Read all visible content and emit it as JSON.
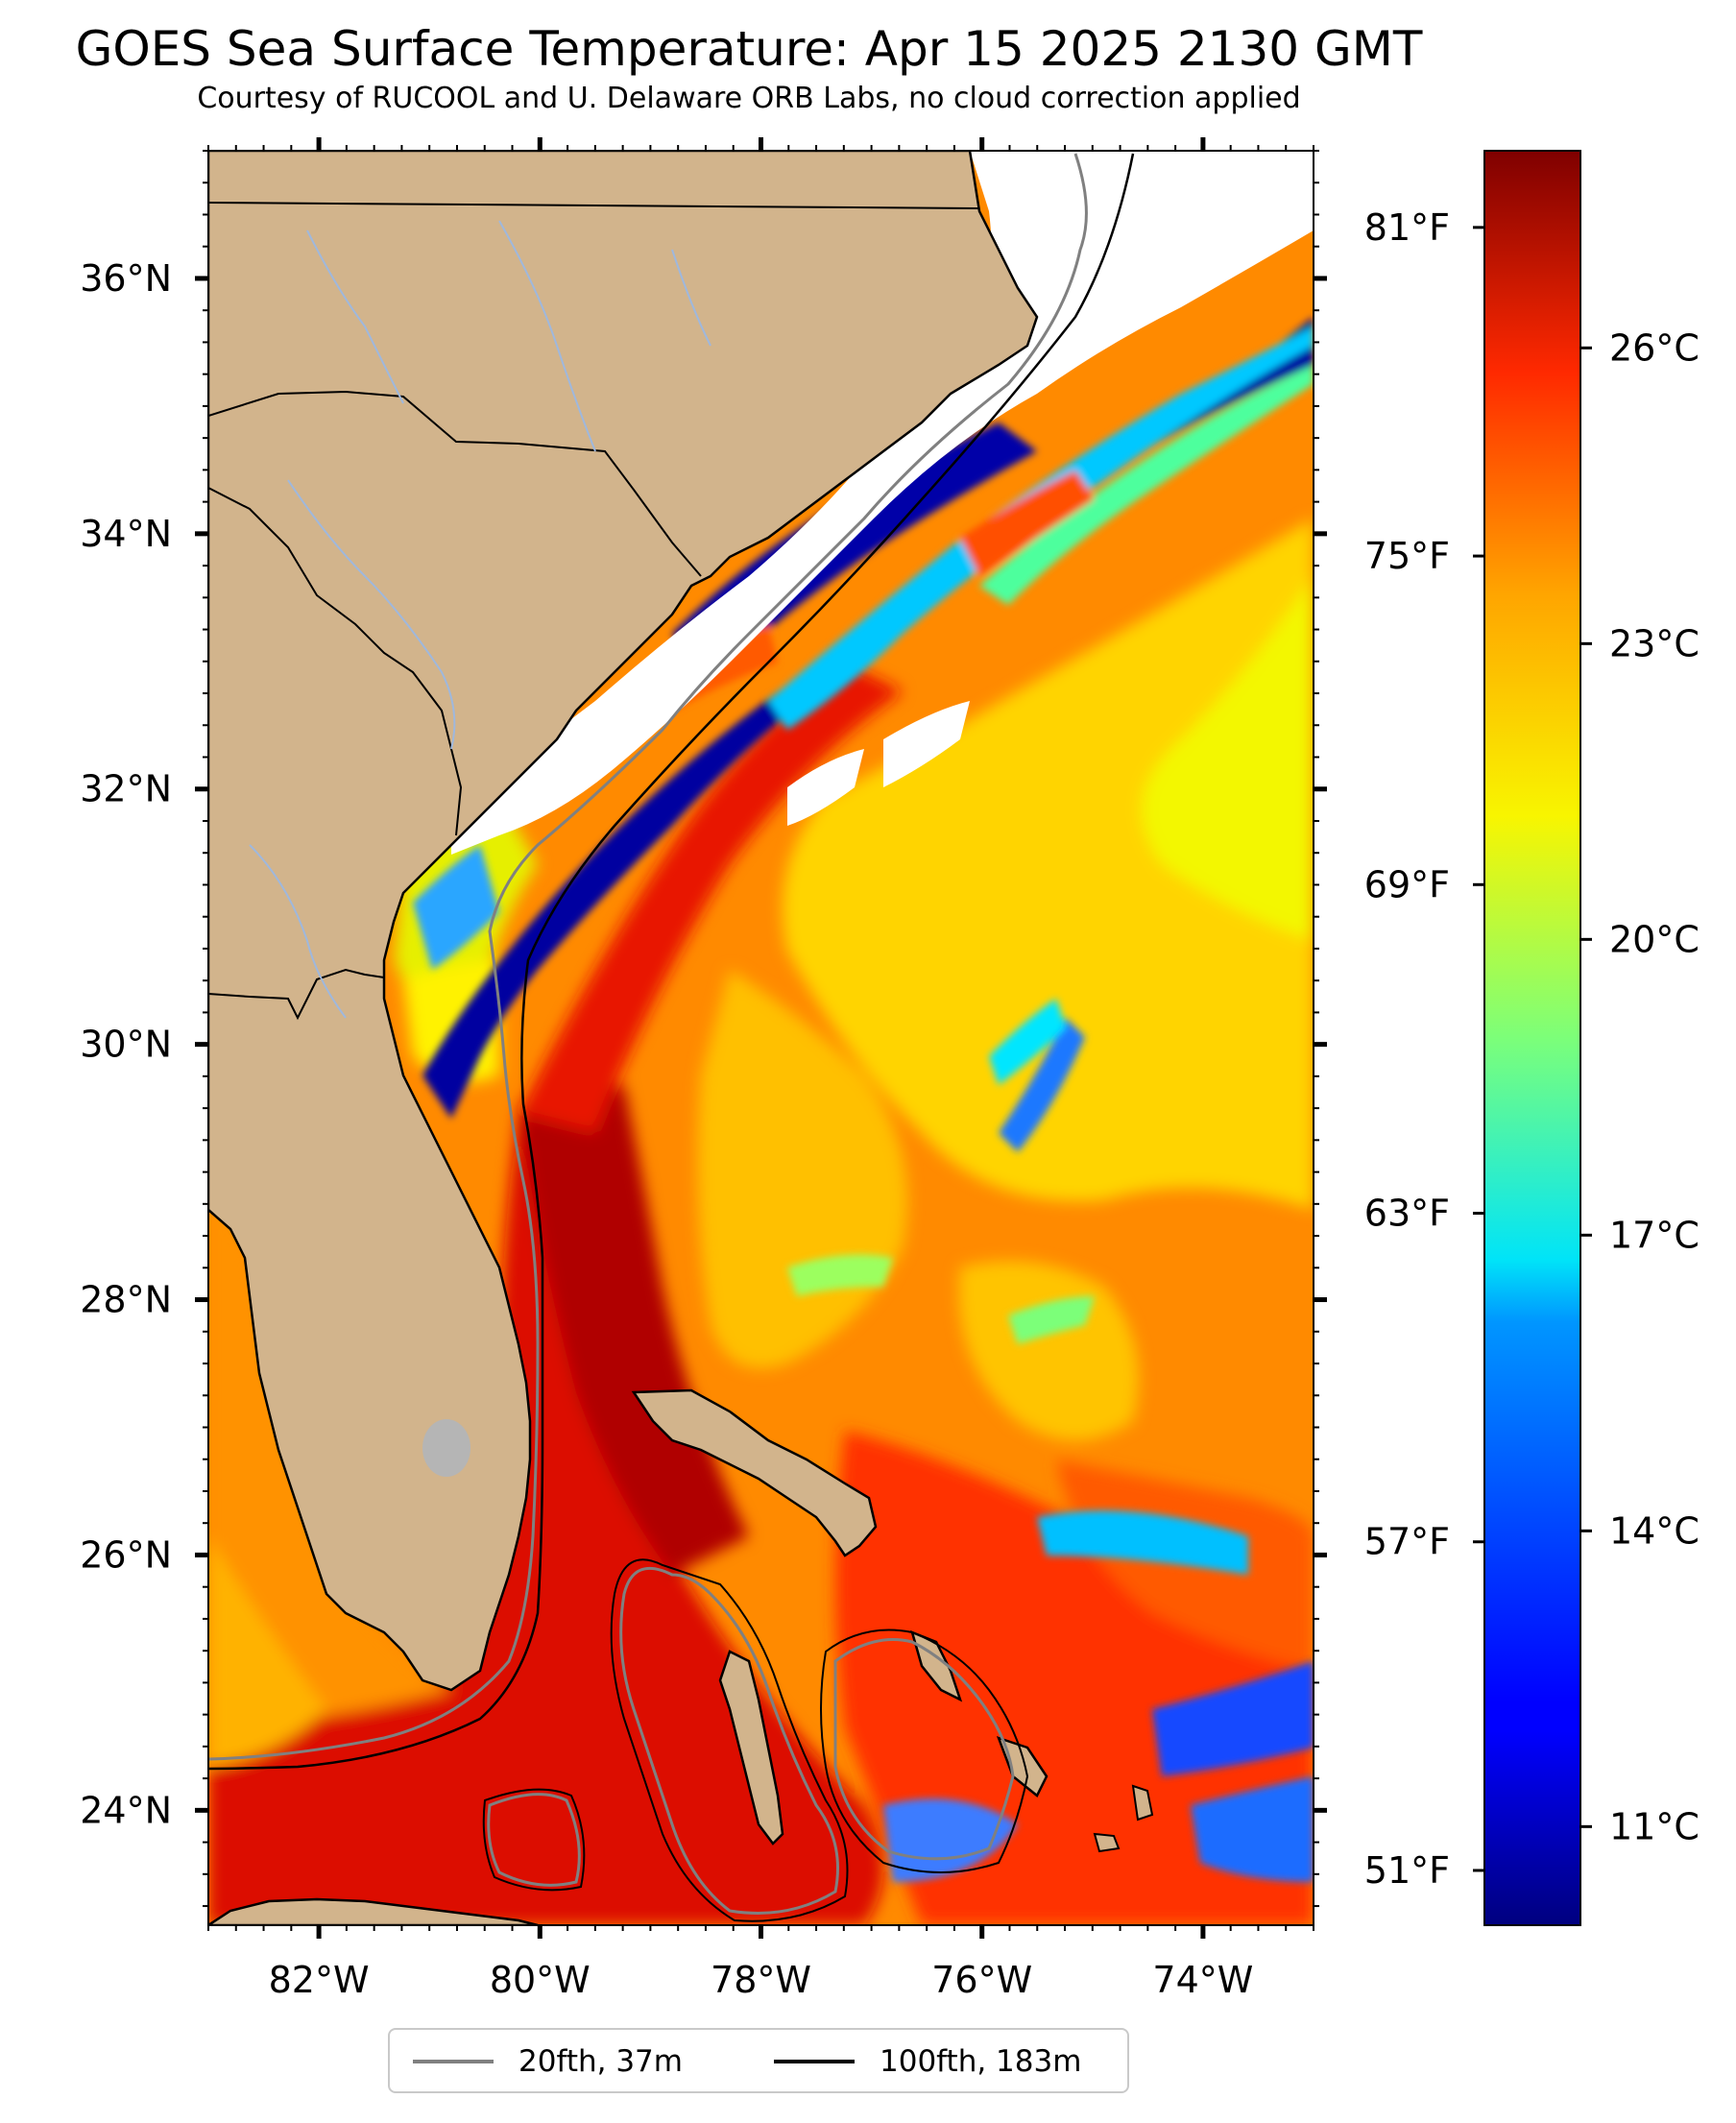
{
  "title": "GOES Sea Surface Temperature: Apr 15 2025 2130 GMT",
  "subtitle": "Courtesy of RUCOOL and U. Delaware ORB Labs, no cloud correction applied",
  "map": {
    "lon_range": [
      -83.0,
      -73.0
    ],
    "lat_range": [
      23.1,
      37.0
    ],
    "lon_ticks": [
      {
        "value": -82,
        "label": "82°W"
      },
      {
        "value": -80,
        "label": "80°W"
      },
      {
        "value": -78,
        "label": "78°W"
      },
      {
        "value": -76,
        "label": "76°W"
      },
      {
        "value": -74,
        "label": "74°W"
      }
    ],
    "lat_ticks": [
      {
        "value": 24,
        "label": "24°N"
      },
      {
        "value": 26,
        "label": "26°N"
      },
      {
        "value": 28,
        "label": "28°N"
      },
      {
        "value": 30,
        "label": "30°N"
      },
      {
        "value": 32,
        "label": "32°N"
      },
      {
        "value": 34,
        "label": "34°N"
      },
      {
        "value": 36,
        "label": "36°N"
      }
    ],
    "colors": {
      "land": "#d2b48c",
      "no_data": "#ffffff",
      "border": "#000000",
      "rivers": "#9fb8dd",
      "lake": "#b5b5b5"
    }
  },
  "colorbar": {
    "colormap": "jet",
    "celsius_range": [
      10.0,
      28.0
    ],
    "celsius_ticks": [
      {
        "value": 11,
        "label": "11°C"
      },
      {
        "value": 14,
        "label": "14°C"
      },
      {
        "value": 17,
        "label": "17°C"
      },
      {
        "value": 20,
        "label": "20°C"
      },
      {
        "value": 23,
        "label": "23°C"
      },
      {
        "value": 26,
        "label": "26°C"
      }
    ],
    "fahrenheit_ticks": [
      {
        "value": 51,
        "label": "51°F"
      },
      {
        "value": 57,
        "label": "57°F"
      },
      {
        "value": 63,
        "label": "63°F"
      },
      {
        "value": 69,
        "label": "69°F"
      },
      {
        "value": 75,
        "label": "75°F"
      },
      {
        "value": 81,
        "label": "81°F"
      }
    ]
  },
  "legend": {
    "items": [
      {
        "label": "20fth, 37m",
        "color": "#808080"
      },
      {
        "label": "100fth, 183m",
        "color": "#000000"
      }
    ]
  }
}
